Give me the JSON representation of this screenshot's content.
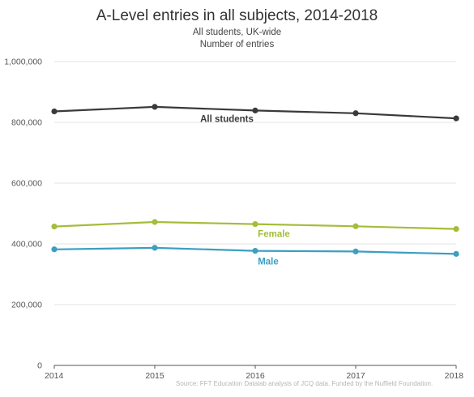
{
  "chart_data": {
    "type": "line",
    "title": "A-Level entries in all subjects, 2014-2018",
    "subtitle": [
      "All students, UK-wide",
      "Number of entries"
    ],
    "x": [
      "2014",
      "2015",
      "2016",
      "2017",
      "2018"
    ],
    "ylim": [
      0,
      1000000
    ],
    "y_ticks": [
      "0",
      "200,000",
      "400,000",
      "600,000",
      "800,000",
      "1,000,000"
    ],
    "grid": true,
    "series": [
      {
        "name": "All students",
        "color": "#3a3a3a",
        "values": [
          836000,
          851000,
          839000,
          830000,
          813000
        ]
      },
      {
        "name": "Female",
        "color": "#a4bd3a",
        "values": [
          457000,
          472000,
          465000,
          458000,
          449000
        ]
      },
      {
        "name": "Male",
        "color": "#3b9fc1",
        "values": [
          382000,
          387000,
          377000,
          375000,
          367000
        ]
      }
    ],
    "source": "Source: FFT Education Datalab analysis of JCQ data. Funded by the Nuffield Foundation."
  }
}
